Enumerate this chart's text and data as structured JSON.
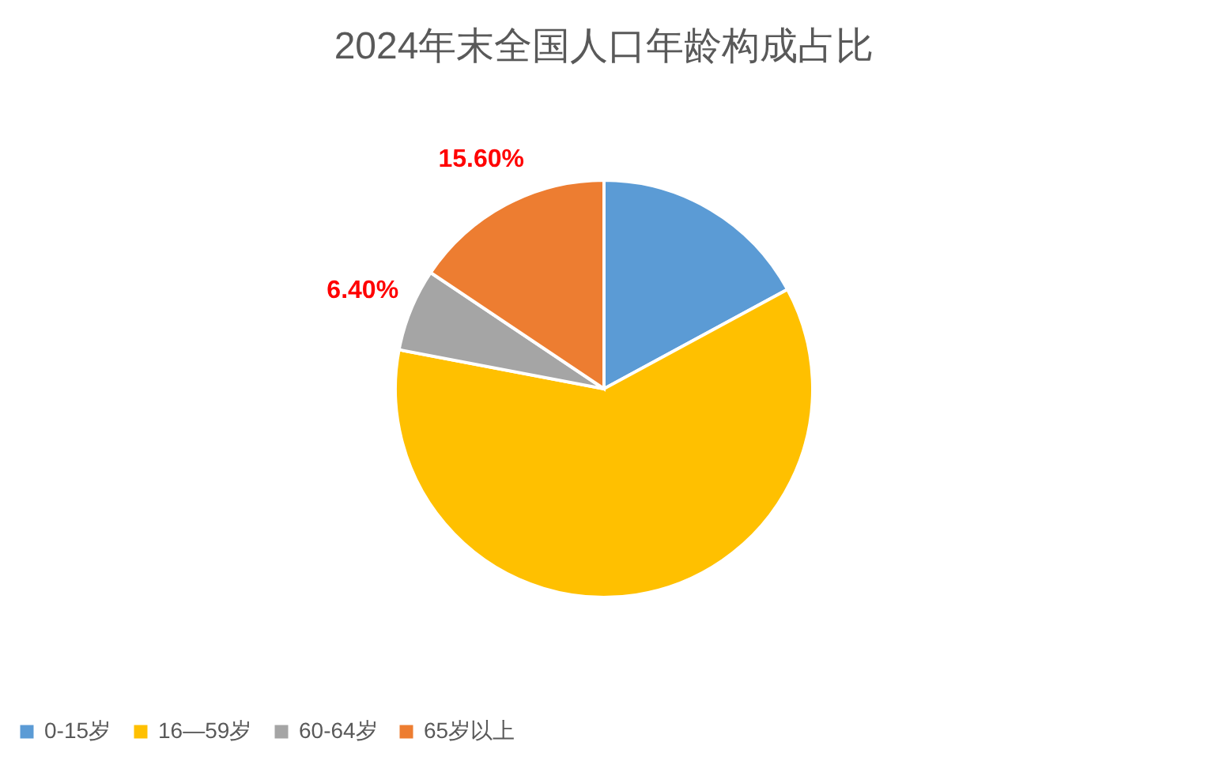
{
  "chart_data": {
    "type": "pie",
    "title": "2024年末全国人口年龄构成占比",
    "categories": [
      "0-15岁",
      "16—59岁",
      "60-64岁",
      "65岁以上"
    ],
    "values": [
      17.1,
      60.9,
      6.4,
      15.6
    ],
    "colors": [
      "#5b9bd5",
      "#ffc000",
      "#a5a5a5",
      "#ed7d31"
    ],
    "value_labels": [
      null,
      null,
      "6.40%",
      "15.60%"
    ],
    "legend": "bottom"
  }
}
